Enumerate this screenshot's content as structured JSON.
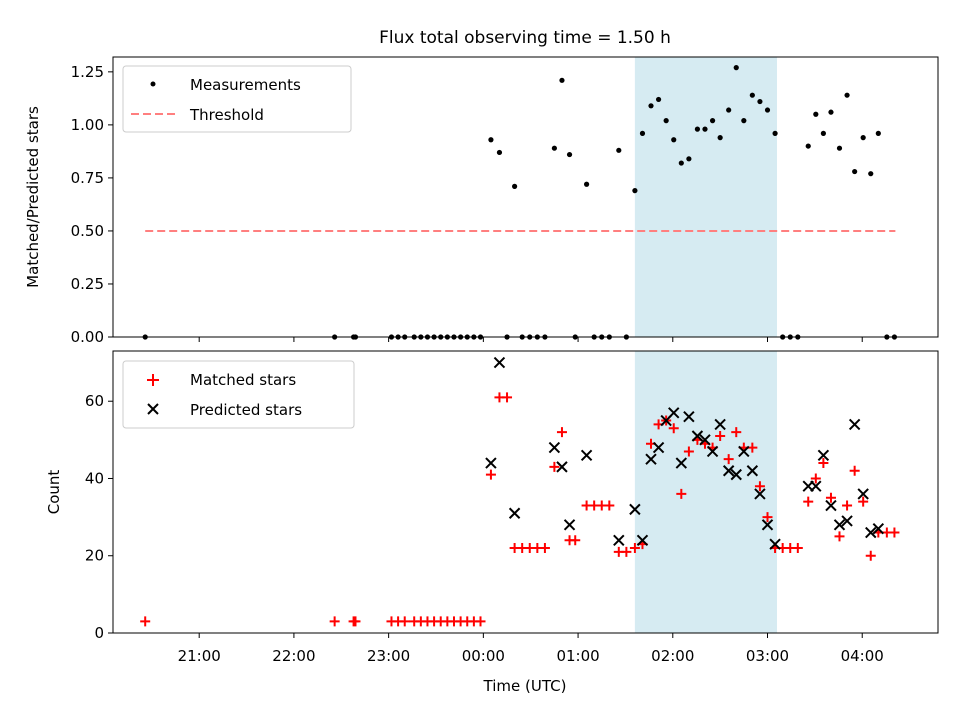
{
  "chart_data": [
    {
      "type": "scatter",
      "title": "Flux total observing time = 1.50 h",
      "xlabel": "",
      "ylabel": "Matched/Predicted stars",
      "xlim_hours": [
        -3.91,
        4.8
      ],
      "ylim": [
        0,
        1.32
      ],
      "yticks": [
        "0.00",
        "0.25",
        "0.50",
        "0.75",
        "1.00",
        "1.25"
      ],
      "highlight_span_hours": [
        1.6,
        3.1
      ],
      "highlight_color": "#add8e6",
      "legend_position": "upper-left",
      "legend": [
        "Measurements",
        "Threshold"
      ],
      "threshold": {
        "name": "Threshold",
        "y": 0.5,
        "x_range_hours": [
          -3.57,
          4.35
        ],
        "color": "#ff7f7f",
        "style": "dashed"
      },
      "series": [
        {
          "name": "Measurements",
          "marker": "dot",
          "color": "#000000",
          "points": [
            [
              -3.57,
              0
            ],
            [
              -1.57,
              0
            ],
            [
              -1.37,
              0
            ],
            [
              -1.35,
              0
            ],
            [
              -0.97,
              0
            ],
            [
              -0.9,
              0
            ],
            [
              -0.83,
              0
            ],
            [
              -0.73,
              0
            ],
            [
              -0.66,
              0
            ],
            [
              -0.59,
              0
            ],
            [
              -0.52,
              0
            ],
            [
              -0.45,
              0
            ],
            [
              -0.38,
              0
            ],
            [
              -0.31,
              0
            ],
            [
              -0.24,
              0
            ],
            [
              -0.17,
              0
            ],
            [
              -0.1,
              0
            ],
            [
              -0.03,
              0
            ],
            [
              0.08,
              0.93
            ],
            [
              0.17,
              0.87
            ],
            [
              0.25,
              0
            ],
            [
              0.33,
              0.71
            ],
            [
              0.41,
              0
            ],
            [
              0.49,
              0
            ],
            [
              0.57,
              0
            ],
            [
              0.65,
              0
            ],
            [
              0.75,
              0.89
            ],
            [
              0.83,
              1.21
            ],
            [
              0.91,
              0.86
            ],
            [
              0.97,
              0
            ],
            [
              1.09,
              0.72
            ],
            [
              1.17,
              0
            ],
            [
              1.25,
              0
            ],
            [
              1.33,
              0
            ],
            [
              1.43,
              0.88
            ],
            [
              1.51,
              0
            ],
            [
              1.6,
              0.69
            ],
            [
              1.68,
              0.96
            ],
            [
              1.77,
              1.09
            ],
            [
              1.85,
              1.12
            ],
            [
              1.93,
              1.02
            ],
            [
              2.01,
              0.93
            ],
            [
              2.09,
              0.82
            ],
            [
              2.17,
              0.84
            ],
            [
              2.26,
              0.98
            ],
            [
              2.34,
              0.98
            ],
            [
              2.42,
              1.02
            ],
            [
              2.5,
              0.94
            ],
            [
              2.59,
              1.07
            ],
            [
              2.67,
              1.27
            ],
            [
              2.75,
              1.02
            ],
            [
              2.84,
              1.14
            ],
            [
              2.92,
              1.11
            ],
            [
              3.0,
              1.07
            ],
            [
              3.08,
              0.96
            ],
            [
              3.16,
              0
            ],
            [
              3.24,
              0
            ],
            [
              3.32,
              0
            ],
            [
              3.43,
              0.9
            ],
            [
              3.51,
              1.05
            ],
            [
              3.59,
              0.96
            ],
            [
              3.67,
              1.06
            ],
            [
              3.76,
              0.89
            ],
            [
              3.84,
              1.14
            ],
            [
              3.92,
              0.78
            ],
            [
              4.01,
              0.94
            ],
            [
              4.09,
              0.77
            ],
            [
              4.17,
              0.96
            ],
            [
              4.26,
              0
            ],
            [
              4.34,
              0
            ]
          ]
        }
      ]
    },
    {
      "type": "scatter",
      "title": "",
      "xlabel": "Time (UTC)",
      "ylabel": "Count",
      "xlim_hours": [
        -3.91,
        4.8
      ],
      "ylim": [
        0,
        73
      ],
      "yticks": [
        "0",
        "20",
        "40",
        "60"
      ],
      "xticks": [
        "21:00",
        "22:00",
        "23:00",
        "00:00",
        "01:00",
        "02:00",
        "03:00",
        "04:00"
      ],
      "xtick_hours": [
        -3,
        -2,
        -1,
        0,
        1,
        2,
        3,
        4
      ],
      "highlight_span_hours": [
        1.6,
        3.1
      ],
      "highlight_color": "#add8e6",
      "legend_position": "upper-left",
      "legend": [
        "Matched stars",
        "Predicted stars"
      ],
      "series": [
        {
          "name": "Matched stars",
          "marker": "plus",
          "color": "#ff0000",
          "points": [
            [
              -3.57,
              3
            ],
            [
              -1.57,
              3
            ],
            [
              -1.37,
              3
            ],
            [
              -1.35,
              3
            ],
            [
              -0.97,
              3
            ],
            [
              -0.9,
              3
            ],
            [
              -0.83,
              3
            ],
            [
              -0.73,
              3
            ],
            [
              -0.66,
              3
            ],
            [
              -0.59,
              3
            ],
            [
              -0.52,
              3
            ],
            [
              -0.45,
              3
            ],
            [
              -0.38,
              3
            ],
            [
              -0.31,
              3
            ],
            [
              -0.24,
              3
            ],
            [
              -0.17,
              3
            ],
            [
              -0.1,
              3
            ],
            [
              -0.03,
              3
            ],
            [
              0.08,
              41
            ],
            [
              0.17,
              61
            ],
            [
              0.25,
              61
            ],
            [
              0.33,
              22
            ],
            [
              0.41,
              22
            ],
            [
              0.49,
              22
            ],
            [
              0.57,
              22
            ],
            [
              0.65,
              22
            ],
            [
              0.75,
              43
            ],
            [
              0.83,
              52
            ],
            [
              0.91,
              24
            ],
            [
              0.97,
              24
            ],
            [
              1.09,
              33
            ],
            [
              1.17,
              33
            ],
            [
              1.25,
              33
            ],
            [
              1.33,
              33
            ],
            [
              1.43,
              21
            ],
            [
              1.51,
              21
            ],
            [
              1.6,
              22
            ],
            [
              1.68,
              23
            ],
            [
              1.77,
              49
            ],
            [
              1.85,
              54
            ],
            [
              1.93,
              55
            ],
            [
              2.01,
              53
            ],
            [
              2.09,
              36
            ],
            [
              2.17,
              47
            ],
            [
              2.26,
              50
            ],
            [
              2.34,
              49
            ],
            [
              2.42,
              48
            ],
            [
              2.5,
              51
            ],
            [
              2.59,
              45
            ],
            [
              2.67,
              52
            ],
            [
              2.75,
              48
            ],
            [
              2.84,
              48
            ],
            [
              2.92,
              38
            ],
            [
              3.0,
              30
            ],
            [
              3.08,
              22
            ],
            [
              3.16,
              22
            ],
            [
              3.24,
              22
            ],
            [
              3.32,
              22
            ],
            [
              3.43,
              34
            ],
            [
              3.51,
              40
            ],
            [
              3.59,
              44
            ],
            [
              3.67,
              35
            ],
            [
              3.76,
              25
            ],
            [
              3.84,
              33
            ],
            [
              3.92,
              42
            ],
            [
              4.01,
              34
            ],
            [
              4.09,
              20
            ],
            [
              4.17,
              26
            ],
            [
              4.26,
              26
            ],
            [
              4.34,
              26
            ]
          ]
        },
        {
          "name": "Predicted stars",
          "marker": "x",
          "color": "#000000",
          "points": [
            [
              0.08,
              44
            ],
            [
              0.17,
              70
            ],
            [
              0.33,
              31
            ],
            [
              0.75,
              48
            ],
            [
              0.83,
              43
            ],
            [
              0.91,
              28
            ],
            [
              1.09,
              46
            ],
            [
              1.43,
              24
            ],
            [
              1.6,
              32
            ],
            [
              1.68,
              24
            ],
            [
              1.77,
              45
            ],
            [
              1.85,
              48
            ],
            [
              1.93,
              55
            ],
            [
              2.01,
              57
            ],
            [
              2.09,
              44
            ],
            [
              2.17,
              56
            ],
            [
              2.26,
              51
            ],
            [
              2.34,
              50
            ],
            [
              2.42,
              47
            ],
            [
              2.5,
              54
            ],
            [
              2.59,
              42
            ],
            [
              2.67,
              41
            ],
            [
              2.75,
              47
            ],
            [
              2.84,
              42
            ],
            [
              2.92,
              36
            ],
            [
              3.0,
              28
            ],
            [
              3.08,
              23
            ],
            [
              3.43,
              38
            ],
            [
              3.51,
              38
            ],
            [
              3.59,
              46
            ],
            [
              3.67,
              33
            ],
            [
              3.76,
              28
            ],
            [
              3.84,
              29
            ],
            [
              3.92,
              54
            ],
            [
              4.01,
              36
            ],
            [
              4.09,
              26
            ],
            [
              4.17,
              27
            ]
          ]
        }
      ]
    }
  ]
}
